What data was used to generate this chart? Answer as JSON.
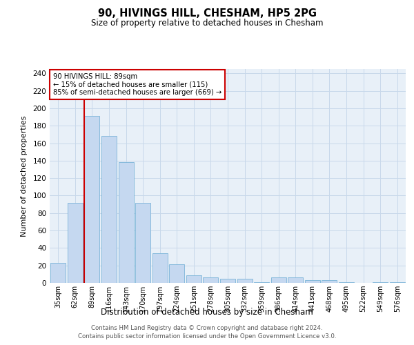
{
  "title": "90, HIVINGS HILL, CHESHAM, HP5 2PG",
  "subtitle": "Size of property relative to detached houses in Chesham",
  "xlabel": "Distribution of detached houses by size in Chesham",
  "ylabel": "Number of detached properties",
  "categories": [
    "35sqm",
    "62sqm",
    "89sqm",
    "116sqm",
    "143sqm",
    "170sqm",
    "197sqm",
    "224sqm",
    "251sqm",
    "278sqm",
    "305sqm",
    "332sqm",
    "359sqm",
    "386sqm",
    "414sqm",
    "441sqm",
    "468sqm",
    "495sqm",
    "522sqm",
    "549sqm",
    "576sqm"
  ],
  "values": [
    23,
    92,
    191,
    168,
    138,
    92,
    34,
    21,
    9,
    6,
    5,
    5,
    1,
    6,
    6,
    3,
    3,
    1,
    0,
    1,
    1
  ],
  "bar_color": "#c5d8f0",
  "bar_edge_color": "#7ab4d8",
  "property_line_label": "90 HIVINGS HILL: 89sqm",
  "annotation_line1": "← 15% of detached houses are smaller (115)",
  "annotation_line2": "85% of semi-detached houses are larger (669) →",
  "vline_color": "#cc0000",
  "annotation_box_color": "#cc0000",
  "ylim": [
    0,
    245
  ],
  "yticks": [
    0,
    20,
    40,
    60,
    80,
    100,
    120,
    140,
    160,
    180,
    200,
    220,
    240
  ],
  "footer_line1": "Contains HM Land Registry data © Crown copyright and database right 2024.",
  "footer_line2": "Contains public sector information licensed under the Open Government Licence v3.0.",
  "background_color": "#ffffff",
  "plot_bg_color": "#e8f0f8",
  "grid_color": "#c8d8ea"
}
